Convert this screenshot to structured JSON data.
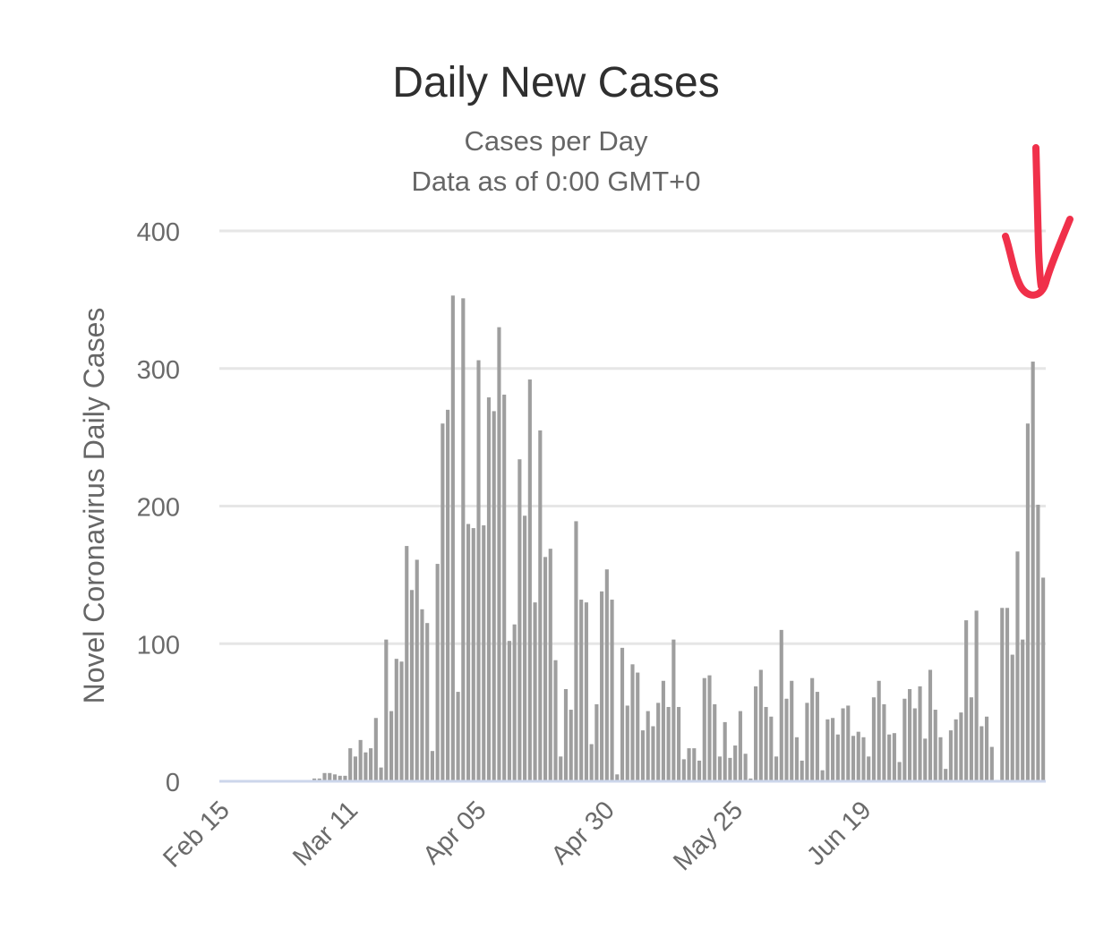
{
  "chart_data": {
    "type": "bar",
    "title": "Daily New Cases",
    "subtitle_lines": [
      "Cases per Day",
      "Data as of 0:00 GMT+0"
    ],
    "ylabel": "Novel Coronavirus Daily Cases",
    "xlabel": "",
    "ylim": [
      0,
      400
    ],
    "y_ticks": [
      0,
      100,
      200,
      300,
      400
    ],
    "grid": true,
    "x_tick_labels": [
      "Feb 15",
      "Mar 11",
      "Apr 05",
      "Apr 30",
      "May 25",
      "Jun 19"
    ],
    "x_tick_dates": [
      "2020-02-15",
      "2020-03-11",
      "2020-04-05",
      "2020-04-30",
      "2020-05-25",
      "2020-06-19"
    ],
    "first_date": "2020-02-15",
    "colors": {
      "bar": "#9e9e9e",
      "grid": "#e6e6e6",
      "baseline": "#ccd6eb",
      "annotation": "#f0304a"
    },
    "series": [
      {
        "values": [
          0,
          0,
          0,
          0,
          0,
          0,
          0,
          0,
          0,
          0,
          0,
          0,
          0,
          0,
          0,
          0,
          0,
          0,
          2,
          2,
          6,
          6,
          5,
          4,
          4,
          24,
          18,
          30,
          21,
          24,
          46,
          10,
          103,
          51,
          89,
          87,
          171,
          139,
          161,
          125,
          115,
          22,
          158,
          260,
          270,
          353,
          65,
          351,
          187,
          184,
          306,
          186,
          279,
          269,
          330,
          281,
          102,
          114,
          234,
          193,
          292,
          130,
          255,
          163,
          169,
          88,
          18,
          67,
          52,
          189,
          132,
          130,
          27,
          56,
          138,
          154,
          132,
          5,
          97,
          55,
          85,
          79,
          37,
          51,
          40,
          57,
          73,
          54,
          103,
          54,
          16,
          24,
          24,
          15,
          75,
          77,
          56,
          18,
          43,
          17,
          26,
          51,
          20,
          2,
          69,
          81,
          54,
          47,
          18,
          110,
          60,
          73,
          32,
          15,
          57,
          75,
          65,
          8,
          45,
          46,
          34,
          53,
          55,
          33,
          36,
          32,
          18,
          61,
          73,
          56,
          34,
          35,
          14,
          60,
          67,
          53,
          69,
          31,
          81,
          52,
          32,
          9,
          37,
          45,
          50,
          117,
          61,
          124,
          40,
          47,
          25,
          1,
          126,
          126,
          92,
          167,
          103,
          260,
          305,
          201,
          148
        ]
      }
    ]
  }
}
